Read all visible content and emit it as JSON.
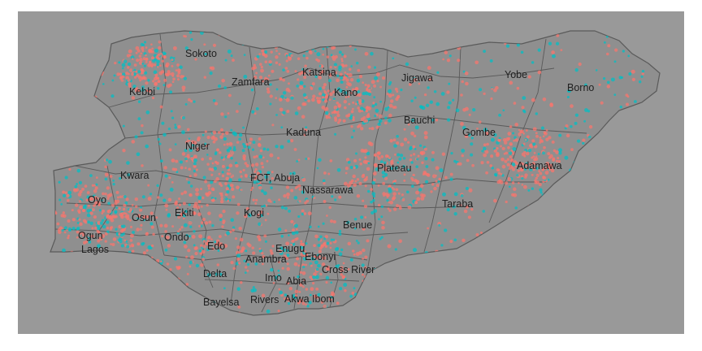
{
  "map": {
    "panel_background": "#999999",
    "country_fill": "#8f8f8f",
    "border_color": "#5a5a5a",
    "point_colors": {
      "series_a": "#f8766d",
      "series_b": "#00bfc4"
    },
    "states": [
      {
        "key": "sokoto",
        "name": "Sokoto"
      },
      {
        "key": "zamfara",
        "name": "Zamfara"
      },
      {
        "key": "katsina",
        "name": "Katsina"
      },
      {
        "key": "jigawa",
        "name": "Jigawa"
      },
      {
        "key": "yobe",
        "name": "Yobe"
      },
      {
        "key": "borno",
        "name": "Borno"
      },
      {
        "key": "kebbi",
        "name": "Kebbi"
      },
      {
        "key": "kano",
        "name": "Kano"
      },
      {
        "key": "bauchi",
        "name": "Bauchi"
      },
      {
        "key": "gombe",
        "name": "Gombe"
      },
      {
        "key": "kaduna",
        "name": "Kaduna"
      },
      {
        "key": "niger",
        "name": "Niger"
      },
      {
        "key": "adamawa",
        "name": "Adamawa"
      },
      {
        "key": "kwara",
        "name": "Kwara"
      },
      {
        "key": "fct",
        "name": "FCT, Abuja"
      },
      {
        "key": "plateau",
        "name": "Plateau"
      },
      {
        "key": "nassarawa",
        "name": "Nassarawa"
      },
      {
        "key": "oyo",
        "name": "Oyo"
      },
      {
        "key": "taraba",
        "name": "Taraba"
      },
      {
        "key": "osun",
        "name": "Osun"
      },
      {
        "key": "ekiti",
        "name": "Ekiti"
      },
      {
        "key": "kogi",
        "name": "Kogi"
      },
      {
        "key": "benue",
        "name": "Benue"
      },
      {
        "key": "ogun",
        "name": "Ogun"
      },
      {
        "key": "ondo",
        "name": "Ondo"
      },
      {
        "key": "lagos",
        "name": "Lagos"
      },
      {
        "key": "edo",
        "name": "Edo"
      },
      {
        "key": "enugu",
        "name": "Enugu"
      },
      {
        "key": "ebonyi",
        "name": "Ebonyi"
      },
      {
        "key": "anambra",
        "name": "Anambra"
      },
      {
        "key": "cross_river",
        "name": "Cross River"
      },
      {
        "key": "delta",
        "name": "Delta"
      },
      {
        "key": "imo",
        "name": "Imo"
      },
      {
        "key": "abia",
        "name": "Abia"
      },
      {
        "key": "bayelsa",
        "name": "Bayelsa"
      },
      {
        "key": "rivers",
        "name": "Rivers"
      },
      {
        "key": "akwa_ibom",
        "name": "Akwa Ibom"
      }
    ]
  }
}
